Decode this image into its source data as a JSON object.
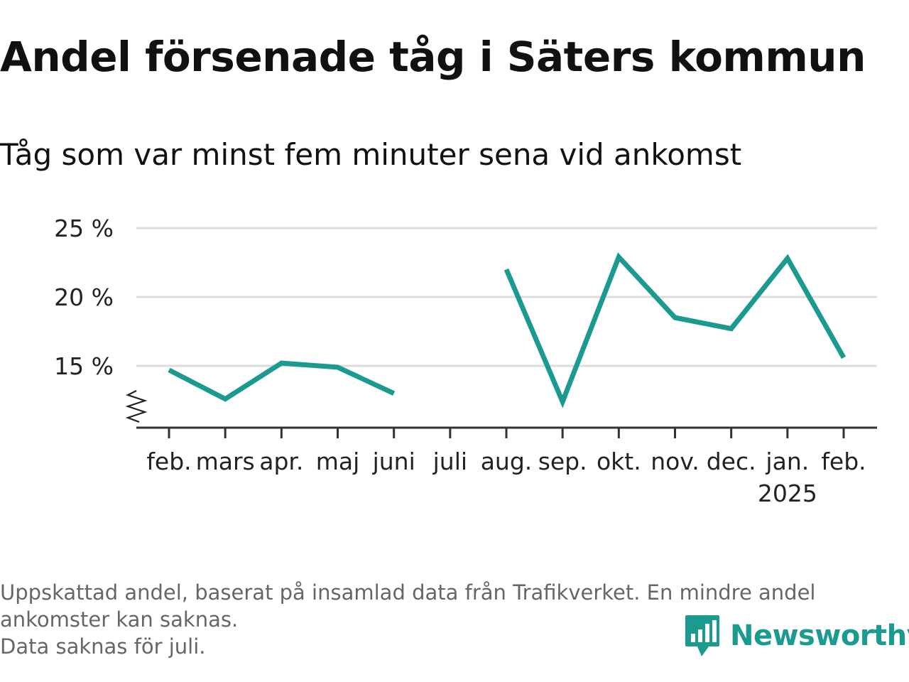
{
  "title": "Andel försenade tåg i Säters kommun",
  "subtitle": "Tåg som var minst fem minuter sena vid ankomst",
  "footnote": {
    "line1": "Uppskattad andel, baserat på insamlad data från Trafikverket. En mindre andel",
    "line2": "ankomster kan saknas.",
    "line3": "Data saknas för juli."
  },
  "brand": {
    "name": "Newsworthy",
    "icon": "bar-chart-speech-bubble-icon",
    "color": "#1b9a8f"
  },
  "chart_data": {
    "type": "line",
    "categories": [
      "feb.",
      "mars",
      "apr.",
      "maj",
      "juni",
      "juli",
      "aug.",
      "sep.",
      "okt.",
      "nov.",
      "dec.",
      "jan.",
      "feb."
    ],
    "category_sublabels": [
      "",
      "",
      "",
      "",
      "",
      "",
      "",
      "",
      "",
      "",
      "",
      "2025",
      ""
    ],
    "series": [
      {
        "values": [
          14.7,
          12.6,
          15.2,
          14.9,
          13.0,
          null,
          22.0,
          12.4,
          22.9,
          18.5,
          17.7,
          22.8,
          15.6
        ],
        "color": "#1b9a8f"
      }
    ],
    "y_ticks": [
      15,
      20,
      25
    ],
    "y_tick_labels": [
      "15 %",
      "20 %",
      "25 %"
    ],
    "ylim": [
      10.5,
      25
    ],
    "y_axis_break": true,
    "grid": true,
    "xlabel": "",
    "ylabel": ""
  }
}
